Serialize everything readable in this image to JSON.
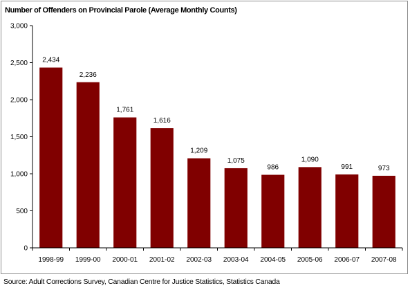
{
  "chart_data": {
    "type": "bar",
    "title": "Number of Offenders on Provincial Parole (Average Monthly Counts)",
    "categories": [
      "1998-99",
      "1999-00",
      "2000-01",
      "2001-02",
      "2002-03",
      "2003-04",
      "2004-05",
      "2005-06",
      "2006-07",
      "2007-08"
    ],
    "values": [
      2434,
      2236,
      1761,
      1616,
      1209,
      1075,
      986,
      1090,
      991,
      973
    ],
    "value_labels": [
      "2,434",
      "2,236",
      "1,761",
      "1,616",
      "1,209",
      "1,075",
      "986",
      "1,090",
      "991",
      "973"
    ],
    "y_ticks": [
      0,
      500,
      1000,
      1500,
      2000,
      2500,
      3000
    ],
    "y_tick_labels": [
      "0",
      "500",
      "1,000",
      "1,500",
      "2,000",
      "2,500",
      "3,000"
    ],
    "ylim": [
      0,
      3000
    ],
    "xlabel": "",
    "ylabel": "",
    "grid": false,
    "bar_color": "#800000"
  },
  "source": "Source:  Adult Corrections Survey, Canadian Centre for Justice Statistics, Statistics Canada"
}
